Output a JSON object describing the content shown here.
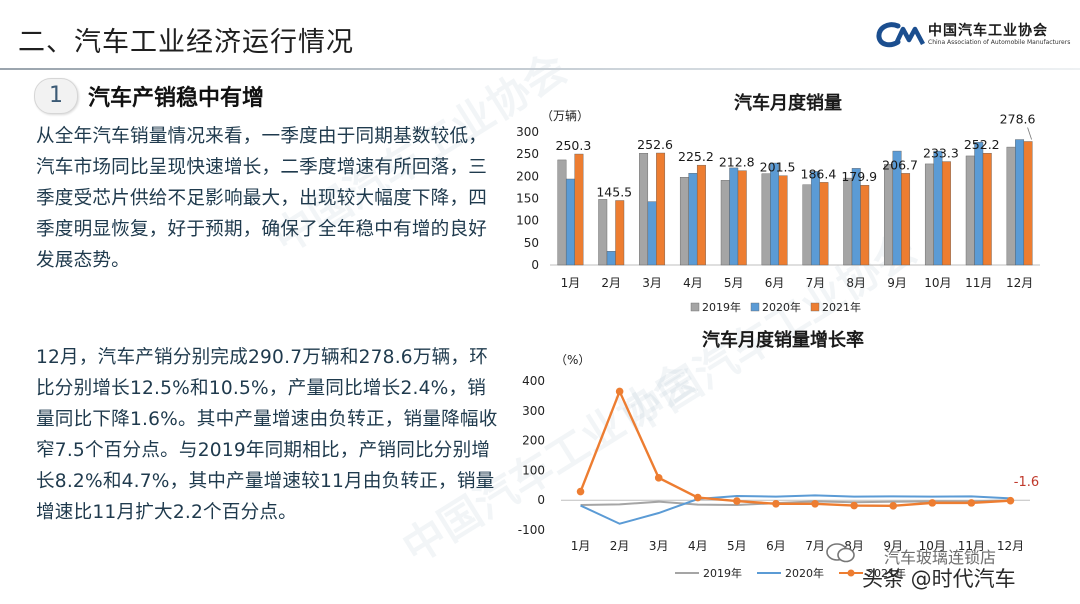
{
  "header": {
    "title": "二、汽车工业经济运行情况",
    "logo_cn": "中国汽车工业协会",
    "logo_en": "China Association of Automobile Manufacturers"
  },
  "section": {
    "number": "1",
    "title": "汽车产销稳中有增"
  },
  "paragraphs": [
    "从全年汽车销量情况来看，一季度由于同期基数较低，汽车市场同比呈现快速增长，二季度增速有所回落，三季度受芯片供给不足影响最大，出现较大幅度下降，四季度明显恢复，好于预期，确保了全年稳中有增的良好发展态势。",
    "12月，汽车产销分别完成290.7万辆和278.6万辆，环比分别增长12.5%和10.5%，产量同比增长2.4%，销量同比下降1.6%。其中产量增速由负转正，销量降幅收窄7.5个百分点。与2019年同期相比，产销同比分别增长8.2%和4.7%，其中产量增速较11月由负转正，销量增速比11月扩大2.2个百分点。"
  ],
  "watermark": "中国汽车工业协会",
  "footer": {
    "line1": "汽车玻璃连锁店",
    "line2": "头条 @时代汽车"
  },
  "colors": {
    "s2019": "#a5a5a5",
    "s2020": "#5b9bd5",
    "s2021": "#ed7d31"
  },
  "chart_data": [
    {
      "type": "bar",
      "title": "汽车月度销量",
      "ylabel": "（万辆）",
      "ylim": [
        0,
        300
      ],
      "yticks": [
        0,
        50,
        100,
        150,
        200,
        250,
        300
      ],
      "categories": [
        "1月",
        "2月",
        "3月",
        "4月",
        "5月",
        "6月",
        "7月",
        "8月",
        "9月",
        "10月",
        "11月",
        "12月"
      ],
      "series": [
        {
          "name": "2019年",
          "values": [
            237,
            148,
            252,
            198,
            191,
            206,
            181,
            196,
            227,
            228,
            246,
            266
          ]
        },
        {
          "name": "2020年",
          "values": [
            194,
            31,
            143,
            207,
            219,
            230,
            211,
            218,
            257,
            257,
            277,
            283
          ]
        },
        {
          "name": "2021年",
          "values": [
            250.3,
            145.5,
            252.6,
            225.2,
            212.8,
            201.5,
            186.4,
            179.9,
            206.7,
            233.3,
            252.2,
            278.6
          ]
        }
      ],
      "data_labels": [
        "250.3",
        "145.5",
        "252.6",
        "225.2",
        "212.8",
        "201.5",
        "186.4",
        "179.9",
        "206.7",
        "233.3",
        "252.2",
        "278.6"
      ],
      "legend": "bottom"
    },
    {
      "type": "line",
      "title": "汽车月度销量增长率",
      "ylabel": "（%）",
      "ylim": [
        -100,
        400
      ],
      "yticks": [
        -100,
        0,
        100,
        200,
        300,
        400
      ],
      "categories": [
        "1月",
        "2月",
        "3月",
        "4月",
        "5月",
        "6月",
        "7月",
        "8月",
        "9月",
        "10月",
        "11月",
        "12月"
      ],
      "series": [
        {
          "name": "2019年",
          "values": [
            -16,
            -14,
            -5,
            -15,
            -16,
            -10,
            -4,
            -7,
            -5,
            -4,
            -4,
            0
          ]
        },
        {
          "name": "2020年",
          "values": [
            -18,
            -79,
            -43,
            4,
            14,
            12,
            16,
            12,
            13,
            12,
            13,
            6
          ]
        },
        {
          "name": "2021年",
          "values": [
            29,
            365,
            75,
            9,
            -3,
            -12,
            -12,
            -18,
            -19,
            -9,
            -9,
            -1.6
          ]
        }
      ],
      "end_label": "-1.6",
      "legend": "bottom"
    }
  ]
}
